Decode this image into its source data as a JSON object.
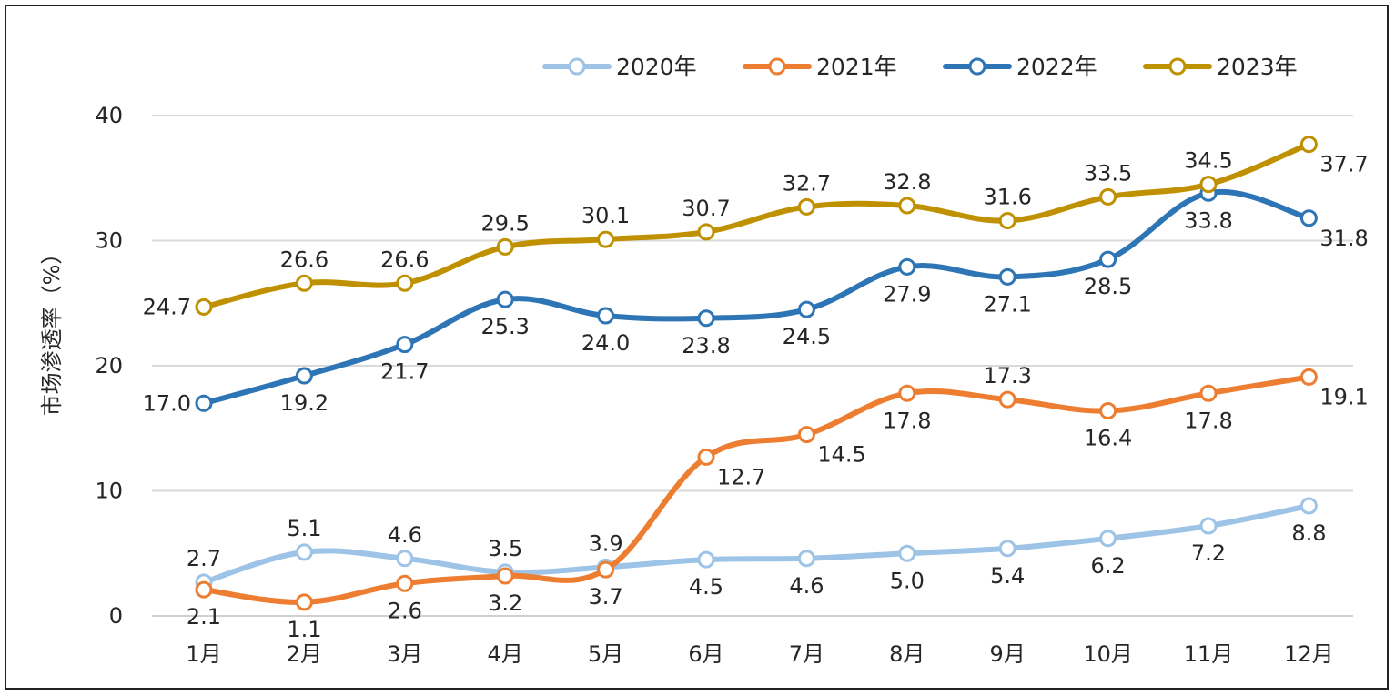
{
  "chart_data": {
    "type": "line",
    "title": "",
    "xlabel": "",
    "ylabel": "市场渗透率（%）",
    "ylim": [
      0,
      40
    ],
    "yticks": [
      0,
      10,
      20,
      30,
      40
    ],
    "grid": true,
    "legend_position": "top-right",
    "categories": [
      "1月",
      "2月",
      "3月",
      "4月",
      "5月",
      "6月",
      "7月",
      "8月",
      "9月",
      "10月",
      "11月",
      "12月"
    ],
    "series": [
      {
        "name": "2020年",
        "color": "#9dc3e6",
        "values": [
          2.7,
          5.1,
          4.6,
          3.5,
          3.9,
          4.5,
          4.6,
          5.0,
          5.4,
          6.2,
          7.2,
          8.8
        ],
        "labels": [
          "2.7",
          "5.1",
          "4.6",
          "3.5",
          "3.9",
          "4.5",
          "4.6",
          "5.0",
          "5.4",
          "6.2",
          "7.2",
          "8.8"
        ]
      },
      {
        "name": "2021年",
        "color": "#ed7d31",
        "values": [
          2.1,
          1.1,
          2.6,
          3.2,
          3.7,
          12.7,
          14.5,
          17.8,
          17.3,
          16.4,
          17.8,
          19.1
        ],
        "labels": [
          "2.1",
          "1.1",
          "2.6",
          "3.2",
          "3.7",
          "12.7",
          "14.5",
          "17.8",
          "17.3",
          "16.4",
          "17.8",
          "19.1"
        ]
      },
      {
        "name": "2022年",
        "color": "#2e75b6",
        "values": [
          17.0,
          19.2,
          21.7,
          25.3,
          24.0,
          23.8,
          24.5,
          27.9,
          27.1,
          28.5,
          33.8,
          31.8
        ],
        "labels": [
          "17.0",
          "19.2",
          "21.7",
          "25.3",
          "24.0",
          "23.8",
          "24.5",
          "27.9",
          "27.1",
          "28.5",
          "33.8",
          "31.8"
        ]
      },
      {
        "name": "2023年",
        "color": "#bf9000",
        "values": [
          24.7,
          26.6,
          26.6,
          29.5,
          30.1,
          30.7,
          32.7,
          32.8,
          31.6,
          33.5,
          34.5,
          37.7
        ],
        "labels": [
          "24.7",
          "26.6",
          "26.6",
          "29.5",
          "30.1",
          "30.7",
          "32.7",
          "32.8",
          "31.6",
          "33.5",
          "34.5",
          "37.7"
        ]
      }
    ]
  }
}
